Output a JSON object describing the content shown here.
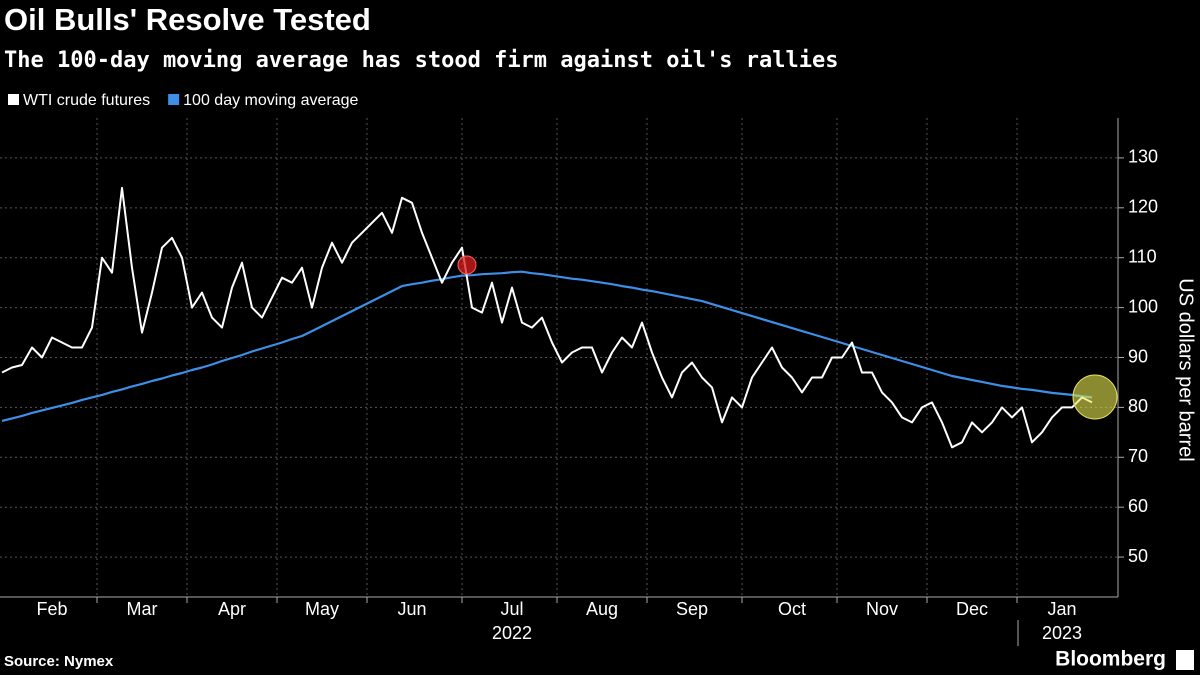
{
  "chart_data": {
    "type": "line",
    "title": "Oil Bulls' Resolve Tested",
    "subtitle": "The 100-day moving average has stood firm against oil's rallies",
    "y_axis_label": "US dollars per barrel",
    "source": "Source: Nymex",
    "brand": "Bloomberg",
    "categories": [
      null,
      null,
      null,
      null,
      null,
      "Feb",
      null,
      null,
      null,
      null,
      null,
      null,
      null,
      null,
      "Mar",
      null,
      null,
      null,
      null,
      null,
      null,
      null,
      null,
      "Apr",
      null,
      null,
      null,
      null,
      null,
      null,
      null,
      null,
      "May",
      null,
      null,
      null,
      null,
      null,
      null,
      null,
      null,
      "Jun",
      null,
      null,
      null,
      null,
      null,
      null,
      null,
      null,
      null,
      "Jul",
      null,
      null,
      null,
      null,
      null,
      null,
      null,
      null,
      "Aug",
      null,
      null,
      null,
      null,
      null,
      null,
      null,
      null,
      "Sep",
      null,
      null,
      null,
      null,
      null,
      null,
      null,
      null,
      null,
      "Oct",
      null,
      null,
      null,
      null,
      null,
      null,
      null,
      null,
      "Nov",
      null,
      null,
      null,
      null,
      null,
      null,
      null,
      null,
      "Dec",
      null,
      null,
      null,
      null,
      null,
      null,
      null,
      null,
      "Jan",
      null,
      null,
      null
    ],
    "year_categories": [
      null,
      null,
      null,
      null,
      null,
      null,
      null,
      null,
      null,
      null,
      null,
      null,
      null,
      null,
      null,
      null,
      null,
      null,
      null,
      null,
      null,
      null,
      null,
      null,
      null,
      null,
      null,
      null,
      null,
      null,
      null,
      null,
      null,
      null,
      null,
      null,
      null,
      null,
      null,
      null,
      null,
      null,
      null,
      null,
      null,
      null,
      null,
      null,
      null,
      null,
      null,
      "2022",
      null,
      null,
      null,
      null,
      null,
      null,
      null,
      null,
      null,
      null,
      null,
      null,
      null,
      null,
      null,
      null,
      null,
      null,
      null,
      null,
      null,
      null,
      null,
      null,
      null,
      null,
      null,
      null,
      null,
      null,
      null,
      null,
      null,
      null,
      null,
      null,
      null,
      null,
      null,
      null,
      null,
      null,
      null,
      null,
      null,
      null,
      null,
      null,
      null,
      null,
      null,
      null,
      null,
      null,
      "2023",
      null,
      null,
      null
    ],
    "series": [
      {
        "name": "WTI crude futures",
        "color": "#ffffff",
        "values": [
          87,
          88,
          88.5,
          92,
          90,
          94,
          93,
          92,
          92,
          96,
          110,
          107,
          124,
          108,
          95,
          103,
          112,
          114,
          110,
          100,
          103,
          98,
          96,
          104,
          109,
          100,
          98,
          102,
          106,
          105,
          108,
          100,
          108,
          113,
          109,
          113,
          115,
          117,
          119,
          115,
          122,
          121,
          115,
          110,
          105,
          109,
          112,
          100,
          99,
          105,
          97,
          104,
          97,
          96,
          98,
          93,
          89,
          91,
          92,
          92,
          87,
          91,
          94,
          92,
          97,
          91,
          86,
          82,
          87,
          89,
          86,
          84,
          77,
          82,
          80,
          86,
          89,
          92,
          88,
          86,
          83,
          86,
          86,
          90,
          90,
          93,
          87,
          87,
          83,
          81,
          78,
          77,
          80,
          81,
          77,
          72,
          73,
          77,
          75,
          77,
          80,
          78,
          80,
          73,
          75,
          78,
          80,
          80,
          82,
          81
        ]
      },
      {
        "name": "100 day moving average",
        "color": "#3d8fe8",
        "values": [
          77.3,
          77.8,
          78.3,
          78.9,
          79.4,
          79.9,
          80.4,
          80.9,
          81.5,
          82.0,
          82.5,
          83.1,
          83.6,
          84.2,
          84.7,
          85.3,
          85.8,
          86.4,
          86.9,
          87.5,
          88.0,
          88.6,
          89.3,
          89.9,
          90.5,
          91.2,
          91.8,
          92.4,
          93.0,
          93.7,
          94.3,
          95.3,
          96.3,
          97.3,
          98.3,
          99.3,
          100.3,
          101.3,
          102.3,
          103.3,
          104.3,
          104.7,
          105.0,
          105.4,
          105.7,
          106.1,
          106.4,
          106.5,
          106.7,
          106.8,
          106.9,
          107.1,
          107.2,
          106.9,
          106.7,
          106.4,
          106.1,
          105.8,
          105.6,
          105.3,
          105.0,
          104.7,
          104.3,
          104.0,
          103.6,
          103.3,
          102.9,
          102.5,
          102.1,
          101.7,
          101.3,
          100.7,
          100.1,
          99.5,
          98.9,
          98.3,
          97.7,
          97.1,
          96.5,
          95.9,
          95.3,
          94.7,
          94.1,
          93.5,
          92.9,
          92.3,
          91.7,
          91.1,
          90.5,
          89.9,
          89.3,
          88.7,
          88.1,
          87.5,
          86.9,
          86.3,
          85.9,
          85.5,
          85.1,
          84.7,
          84.3,
          84.0,
          83.7,
          83.5,
          83.2,
          82.9,
          82.7,
          82.5,
          82.2,
          82.0
        ]
      }
    ],
    "ylim": [
      42,
      138
    ],
    "yticks": [
      50,
      60,
      70,
      80,
      90,
      100,
      110,
      120,
      130
    ],
    "grid": true
  }
}
